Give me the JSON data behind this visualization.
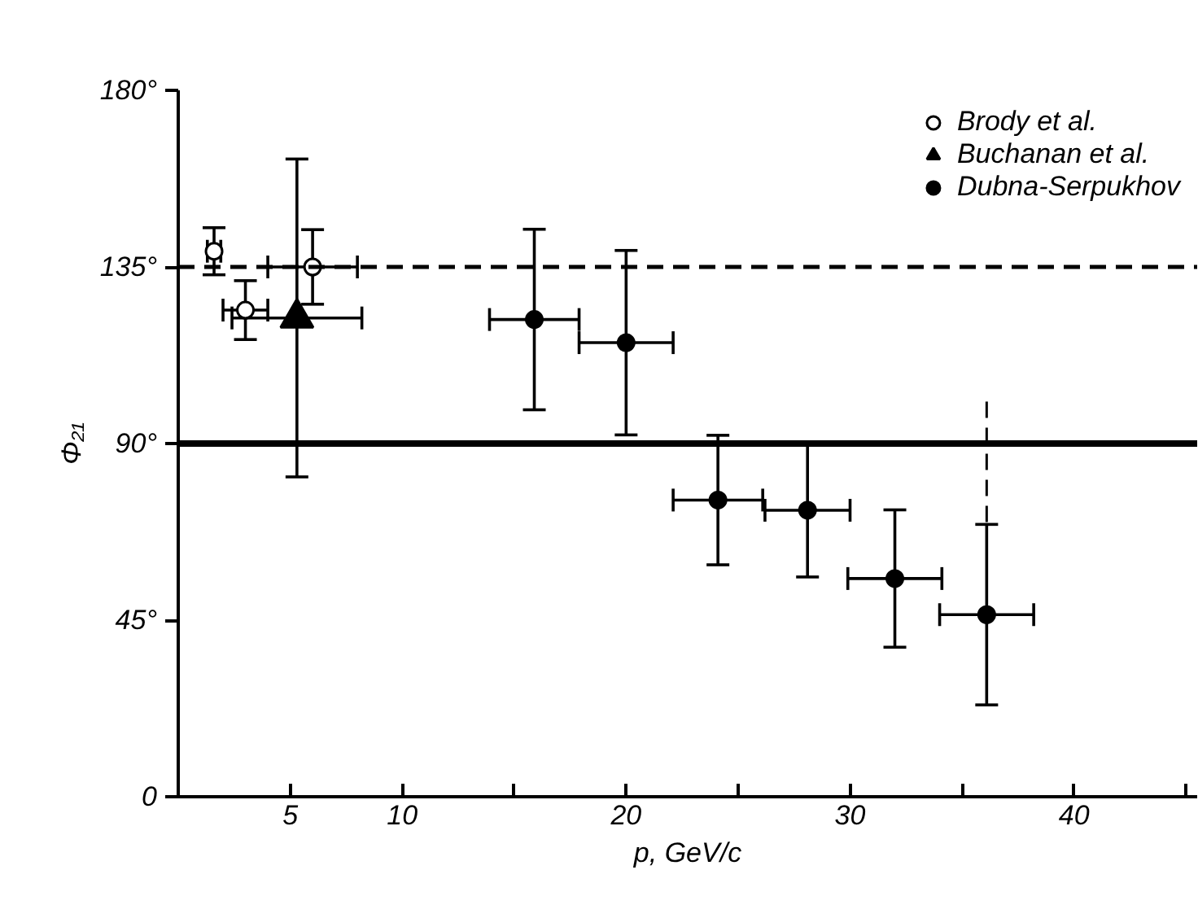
{
  "chart_data": {
    "type": "scatter",
    "xlabel": "p, GeV/c",
    "ylabel": "Φ₂₁",
    "xlim": [
      0,
      45.5
    ],
    "ylim": [
      0,
      180
    ],
    "xticks": [
      5,
      10,
      {
        "value": 15,
        "label": null
      },
      20,
      {
        "value": 25,
        "label": null
      },
      30,
      {
        "value": 35,
        "label": null
      },
      40,
      {
        "value": 45,
        "label": null
      }
    ],
    "yticks": [
      {
        "value": 0,
        "label": "0"
      },
      {
        "value": 45,
        "label": "45°"
      },
      {
        "value": 90,
        "label": "90°"
      },
      {
        "value": 135,
        "label": "135°"
      },
      {
        "value": 180,
        "label": "180°"
      }
    ],
    "grid": false,
    "legend": "top right",
    "ref_lines": [
      {
        "axis": "y",
        "value": 135,
        "line_style": "dashed",
        "color": "#000000"
      },
      {
        "axis": "y",
        "value": 90,
        "line_style": "solid",
        "color": "#000000"
      }
    ],
    "series": [
      {
        "name": "Brody et al.",
        "color": "#ffffff",
        "marker": "circle",
        "x": [
          1.6,
          3.0,
          6.0
        ],
        "values": [
          139,
          124,
          135
        ],
        "errors": [
          6,
          7.5,
          9.5
        ],
        "xerrors": [
          0.3,
          1,
          2
        ]
      },
      {
        "name": "Buchanan et al.",
        "color": "#000000",
        "marker": "triangle",
        "x": [
          5.3
        ],
        "values": [
          122
        ],
        "errors": [
          40.5
        ],
        "xerrors": [
          2.9
        ]
      },
      {
        "name": "Dubna-Serpukhov",
        "color": "#000000",
        "marker": "circle",
        "x": [
          15.9,
          20.0,
          24.1,
          28.1,
          32.0,
          36.1
        ],
        "values": [
          121.6,
          115.7,
          75.6,
          73,
          55.6,
          46.4
        ],
        "errors": [
          23,
          23.5,
          16.5,
          17,
          17.5,
          23
        ],
        "xerrors": [
          2,
          2.1,
          2,
          1.9,
          2.1,
          2.1
        ]
      },
      {
        "type": "line",
        "color": "#000000",
        "line_style": "dashed",
        "marker": "none",
        "x": [
          36.1,
          36.1
        ],
        "values": [
          70,
          100.7
        ]
      }
    ]
  }
}
